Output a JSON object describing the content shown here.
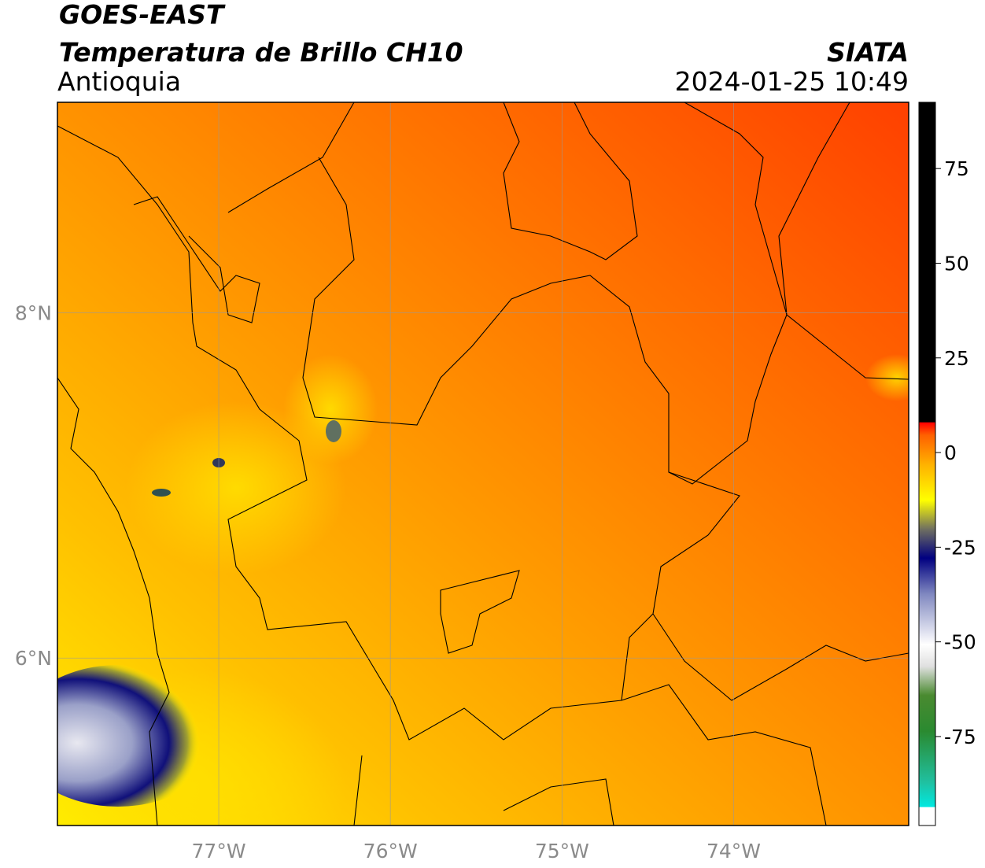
{
  "header": {
    "title": "GOES-EAST",
    "subtitle": "Temperatura de Brillo CH10",
    "region": "Antioquia",
    "agency": "SIATA",
    "datetime": "2024-01-25 10:49"
  },
  "map": {
    "xlim": [
      -77.94,
      -72.98
    ],
    "ylim": [
      5.03,
      9.22
    ],
    "xticks": [
      {
        "value": -77,
        "label": "77°W"
      },
      {
        "value": -76,
        "label": "76°W"
      },
      {
        "value": -75,
        "label": "75°W"
      },
      {
        "value": -74,
        "label": "74°W"
      }
    ],
    "yticks": [
      {
        "value": 8,
        "label": "8°N"
      },
      {
        "value": 6,
        "label": "6°N"
      }
    ],
    "grid": true
  },
  "colorbar": {
    "lim": [
      -98.5,
      92.5
    ],
    "ticks": [
      75,
      50,
      25,
      0,
      -25,
      -50,
      -75
    ]
  }
}
